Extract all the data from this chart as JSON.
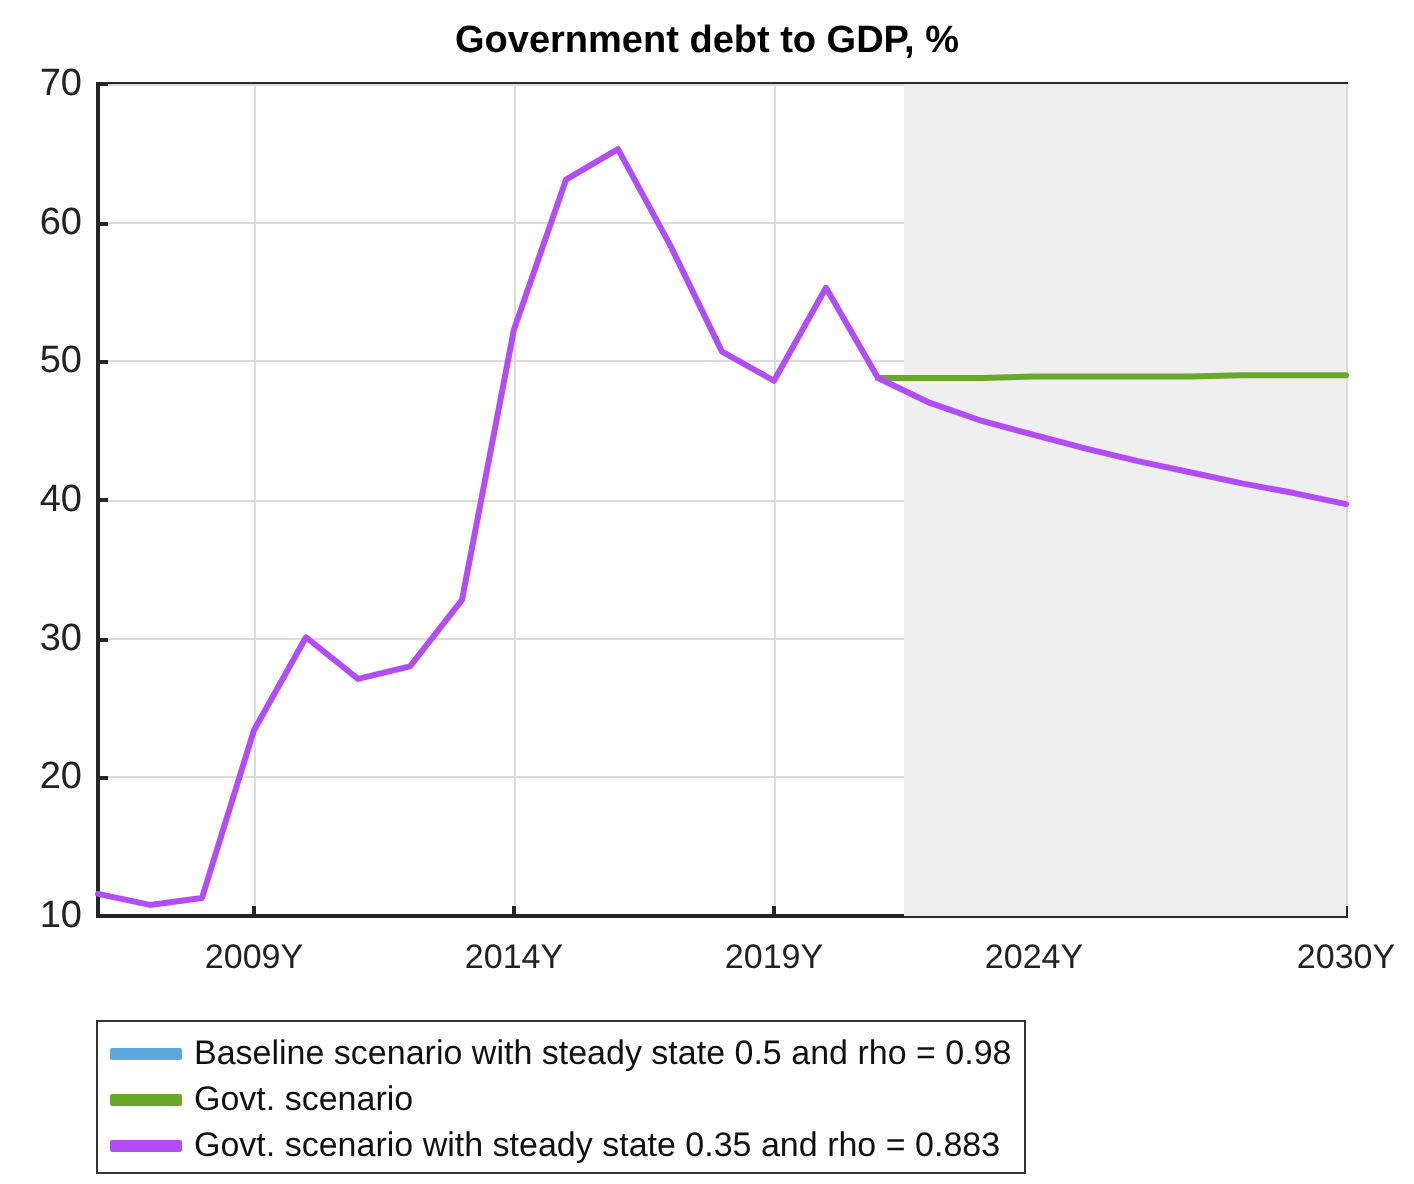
{
  "chart_data": {
    "type": "line",
    "title": "Government debt to GDP, %",
    "x": [
      2006,
      2007,
      2008,
      2009,
      2010,
      2011,
      2012,
      2013,
      2014,
      2015,
      2016,
      2017,
      2018,
      2019,
      2020,
      2021,
      2022,
      2023,
      2024,
      2025,
      2026,
      2027,
      2028,
      2029,
      2030
    ],
    "series": [
      {
        "name": "Baseline scenario with steady state 0.5 and rho = 0.98",
        "color": "#5ba8dc",
        "values": [
          null,
          null,
          null,
          null,
          null,
          null,
          null,
          null,
          null,
          null,
          null,
          null,
          null,
          null,
          null,
          null,
          null,
          null,
          null,
          null,
          null,
          null,
          null,
          null,
          null
        ]
      },
      {
        "name": "Govt. scenario",
        "color": "#6aa82c",
        "values": [
          null,
          null,
          null,
          null,
          null,
          null,
          null,
          null,
          null,
          null,
          null,
          null,
          null,
          null,
          null,
          48.8,
          48.8,
          48.8,
          48.9,
          48.9,
          48.9,
          48.9,
          49.0,
          49.0,
          49.0
        ]
      },
      {
        "name": "Govt. scenario with steady state 0.35 and rho = 0.883",
        "color": "#b24cf5",
        "values": [
          11.6,
          10.8,
          11.3,
          23.4,
          30.1,
          27.1,
          28.0,
          32.8,
          52.3,
          63.1,
          65.3,
          58.4,
          50.7,
          48.6,
          55.3,
          48.8,
          47.0,
          45.7,
          44.7,
          43.7,
          42.8,
          42.0,
          41.2,
          40.5,
          39.7
        ]
      }
    ],
    "xlim": [
      2006,
      2030
    ],
    "xticks": [
      {
        "value": 2009,
        "label": "2009Y"
      },
      {
        "value": 2014,
        "label": "2014Y"
      },
      {
        "value": 2019,
        "label": "2019Y"
      },
      {
        "value": 2024,
        "label": "2024Y"
      },
      {
        "value": 2030,
        "label": "2030Y"
      }
    ],
    "ylim": [
      10,
      70
    ],
    "yticks": [
      10,
      20,
      30,
      40,
      50,
      60,
      70
    ],
    "bands": [
      {
        "axis": "x",
        "from": 2021.5,
        "to": 2030,
        "color": "#efefef"
      }
    ],
    "grid": true,
    "legend": "bottom",
    "marker": "none",
    "line_style": "solid"
  }
}
